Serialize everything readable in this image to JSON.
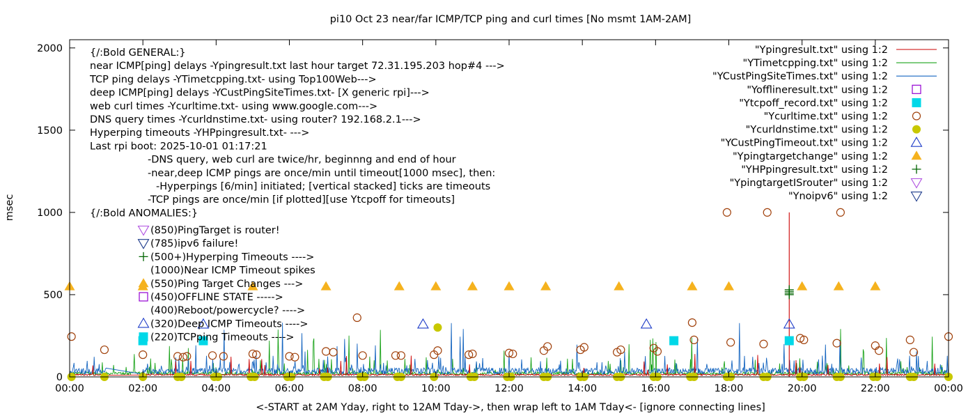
{
  "chart_data": {
    "type": "line",
    "title": "pi10 Oct 23  near/far ICMP/TCP ping and curl times [No msmt 1AM-2AM]",
    "xlabel": "<-START at 2AM Yday, right to 12AM Tday->, then wrap left to 1AM Tday<- [ignore connecting lines]",
    "ylabel": "msec",
    "xlim": [
      0,
      24
    ],
    "ylim": [
      0,
      2050
    ],
    "x_ticks": [
      "00:00",
      "02:00",
      "04:00",
      "06:00",
      "08:00",
      "10:00",
      "12:00",
      "14:00",
      "16:00",
      "18:00",
      "20:00",
      "22:00",
      "00:00"
    ],
    "y_ticks": [
      0,
      500,
      1000,
      1500,
      2000
    ],
    "grid": false,
    "legend_position": "top-right",
    "notes": [
      "{/:Bold GENERAL:}",
      "near ICMP[ping] delays -Ypingresult.txt last hour target 72.31.195.203 hop#4 --->",
      "TCP ping delays -YTimetcpping.txt- using Top100Web--->",
      "deep ICMP[ping] delays -YCustPingSiteTimes.txt- [X generic rpi]--->",
      "web curl times -Ycurltime.txt- using www.google.com--->",
      "DNS query times -Ycurldnstime.txt- using router? 192.168.2.1--->",
      "Hyperping timeouts -YHPpingresult.txt- --->",
      "Last rpi boot: 2025-10-01 01:17:21",
      "-DNS query, web curl are twice/hr, beginnng and end of hour",
      "-near,deep ICMP pings are once/min until timeout[1000 msec], then:",
      "-Hyperpings [6/min] initiated; [vertical stacked] ticks are timeouts",
      "-TCP pings are once/min [if plotted][use Ytcpoff for timeouts]",
      "{/:Bold ANOMALIES:}"
    ],
    "anomaly_key": [
      {
        "marker": "tri-down-purple",
        "text": "(850)PingTarget is router!"
      },
      {
        "marker": "tri-down-navy",
        "text": "(785)ipv6 failure!"
      },
      {
        "marker": "plus-green",
        "text": "(500+)Hyperping Timeouts ---->"
      },
      {
        "marker": "none",
        "text": "(1000)Near ICMP Timeout spikes"
      },
      {
        "marker": "tri-up-orange",
        "text": "(550)Ping Target Changes --->"
      },
      {
        "marker": "square-purple",
        "text": "(450)OFFLINE STATE ----->"
      },
      {
        "marker": "none",
        "text": "(400)Reboot/powercycle? ---->"
      },
      {
        "marker": "tri-up-blue",
        "text": "(320)Deep ICMP Timeouts ---->"
      },
      {
        "marker": "square-cyan",
        "text": "(220)TCPping Timeouts ---->"
      }
    ],
    "series": [
      {
        "name": "\"Ypingresult.txt\" using 1:2",
        "style": "line",
        "color": "#cc0000"
      },
      {
        "name": "\"YTimetcpping.txt\" using 1:2",
        "style": "line",
        "color": "#1aa31a"
      },
      {
        "name": "\"YCustPingSiteTimes.txt\" using 1:2",
        "style": "line",
        "color": "#1565c0"
      },
      {
        "name": "\"Yofflineresult.txt\" using 1:2",
        "style": "open-square",
        "color": "#9400d3",
        "points": []
      },
      {
        "name": "\"Ytcpoff_record.txt\" using 1:2",
        "style": "filled-square",
        "color": "#00d8e8",
        "points": [
          [
            2.0,
            220
          ],
          [
            3.65,
            220
          ],
          [
            16.5,
            220
          ],
          [
            19.65,
            220
          ]
        ]
      },
      {
        "name": "\"Ycurltime.txt\" using 1:2",
        "style": "open-circle",
        "color": "#a0400a",
        "points": [
          [
            0.05,
            245
          ],
          [
            0.95,
            165
          ],
          [
            2.0,
            135
          ],
          [
            2.95,
            125
          ],
          [
            3.1,
            120
          ],
          [
            3.2,
            125
          ],
          [
            3.9,
            130
          ],
          [
            4.2,
            125
          ],
          [
            5.0,
            140
          ],
          [
            5.1,
            135
          ],
          [
            6.0,
            125
          ],
          [
            6.15,
            120
          ],
          [
            7.0,
            155
          ],
          [
            7.2,
            150
          ],
          [
            7.85,
            360
          ],
          [
            8.0,
            130
          ],
          [
            8.9,
            130
          ],
          [
            9.05,
            130
          ],
          [
            9.95,
            135
          ],
          [
            10.05,
            160
          ],
          [
            10.9,
            135
          ],
          [
            11.0,
            140
          ],
          [
            12.0,
            145
          ],
          [
            12.1,
            140
          ],
          [
            12.95,
            160
          ],
          [
            13.05,
            185
          ],
          [
            13.95,
            165
          ],
          [
            14.05,
            180
          ],
          [
            14.95,
            150
          ],
          [
            15.05,
            165
          ],
          [
            15.95,
            175
          ],
          [
            16.05,
            155
          ],
          [
            17.0,
            330
          ],
          [
            17.05,
            225
          ],
          [
            17.95,
            1000
          ],
          [
            18.05,
            210
          ],
          [
            18.95,
            200
          ],
          [
            19.05,
            1000
          ],
          [
            19.95,
            235
          ],
          [
            20.05,
            225
          ],
          [
            20.95,
            205
          ],
          [
            21.05,
            1000
          ],
          [
            22.0,
            190
          ],
          [
            22.1,
            160
          ],
          [
            22.95,
            225
          ],
          [
            23.05,
            150
          ],
          [
            24.0,
            245
          ]
        ]
      },
      {
        "name": "\"Ycurldnstime.txt\" using 1:2",
        "style": "filled-circle",
        "color": "#c8c800",
        "points": [
          [
            0.05,
            0
          ],
          [
            0.95,
            0
          ],
          [
            2.0,
            0
          ],
          [
            2.95,
            0
          ],
          [
            3.05,
            0
          ],
          [
            3.95,
            0
          ],
          [
            4.05,
            0
          ],
          [
            4.95,
            0
          ],
          [
            5.05,
            0
          ],
          [
            5.95,
            0
          ],
          [
            6.05,
            0
          ],
          [
            6.95,
            0
          ],
          [
            7.05,
            0
          ],
          [
            7.95,
            0
          ],
          [
            8.05,
            0
          ],
          [
            8.95,
            0
          ],
          [
            9.05,
            0
          ],
          [
            9.95,
            0
          ],
          [
            10.05,
            300
          ],
          [
            10.95,
            0
          ],
          [
            11.05,
            0
          ],
          [
            11.95,
            0
          ],
          [
            12.05,
            0
          ],
          [
            12.95,
            0
          ],
          [
            13.05,
            0
          ],
          [
            13.95,
            0
          ],
          [
            14.05,
            0
          ],
          [
            14.95,
            0
          ],
          [
            15.05,
            0
          ],
          [
            15.95,
            0
          ],
          [
            16.05,
            0
          ],
          [
            16.95,
            0
          ],
          [
            17.05,
            0
          ],
          [
            17.95,
            0
          ],
          [
            18.05,
            0
          ],
          [
            18.95,
            0
          ],
          [
            19.05,
            0
          ],
          [
            19.95,
            0
          ],
          [
            20.05,
            0
          ],
          [
            20.95,
            0
          ],
          [
            21.05,
            0
          ],
          [
            21.95,
            0
          ],
          [
            22.05,
            0
          ],
          [
            22.95,
            0
          ],
          [
            23.05,
            0
          ],
          [
            24.0,
            0
          ]
        ]
      },
      {
        "name": "\"YCustPingTimeout.txt\" using 1:2",
        "style": "open-tri-up",
        "color": "#1e3cc8",
        "points": [
          [
            3.65,
            320
          ],
          [
            9.65,
            320
          ],
          [
            15.75,
            320
          ],
          [
            19.65,
            320
          ]
        ]
      },
      {
        "name": "\"Ypingtargetchange\" using 1:2",
        "style": "filled-tri-up",
        "color": "#f5b21e",
        "points": [
          [
            0.0,
            550
          ],
          [
            2.0,
            550
          ],
          [
            5.0,
            550
          ],
          [
            7.0,
            550
          ],
          [
            9.0,
            550
          ],
          [
            10.0,
            550
          ],
          [
            11.0,
            550
          ],
          [
            12.0,
            550
          ],
          [
            13.0,
            550
          ],
          [
            15.0,
            550
          ],
          [
            17.0,
            550
          ],
          [
            18.0,
            550
          ],
          [
            20.0,
            550
          ],
          [
            21.0,
            550
          ],
          [
            22.0,
            550
          ]
        ]
      },
      {
        "name": "\"YHPpingresult.txt\" using 1:2",
        "style": "plus",
        "color": "#006400",
        "points": [
          [
            19.65,
            500
          ],
          [
            19.65,
            510
          ],
          [
            19.65,
            520
          ],
          [
            19.65,
            530
          ]
        ]
      },
      {
        "name": "\"YpingtargetISrouter\" using 1:2",
        "style": "open-tri-down",
        "color": "#b050e0",
        "points": []
      },
      {
        "name": "\"Ynoipv6\" using 1:2",
        "style": "open-tri-down",
        "color": "#1e3c8c",
        "points": []
      }
    ]
  }
}
